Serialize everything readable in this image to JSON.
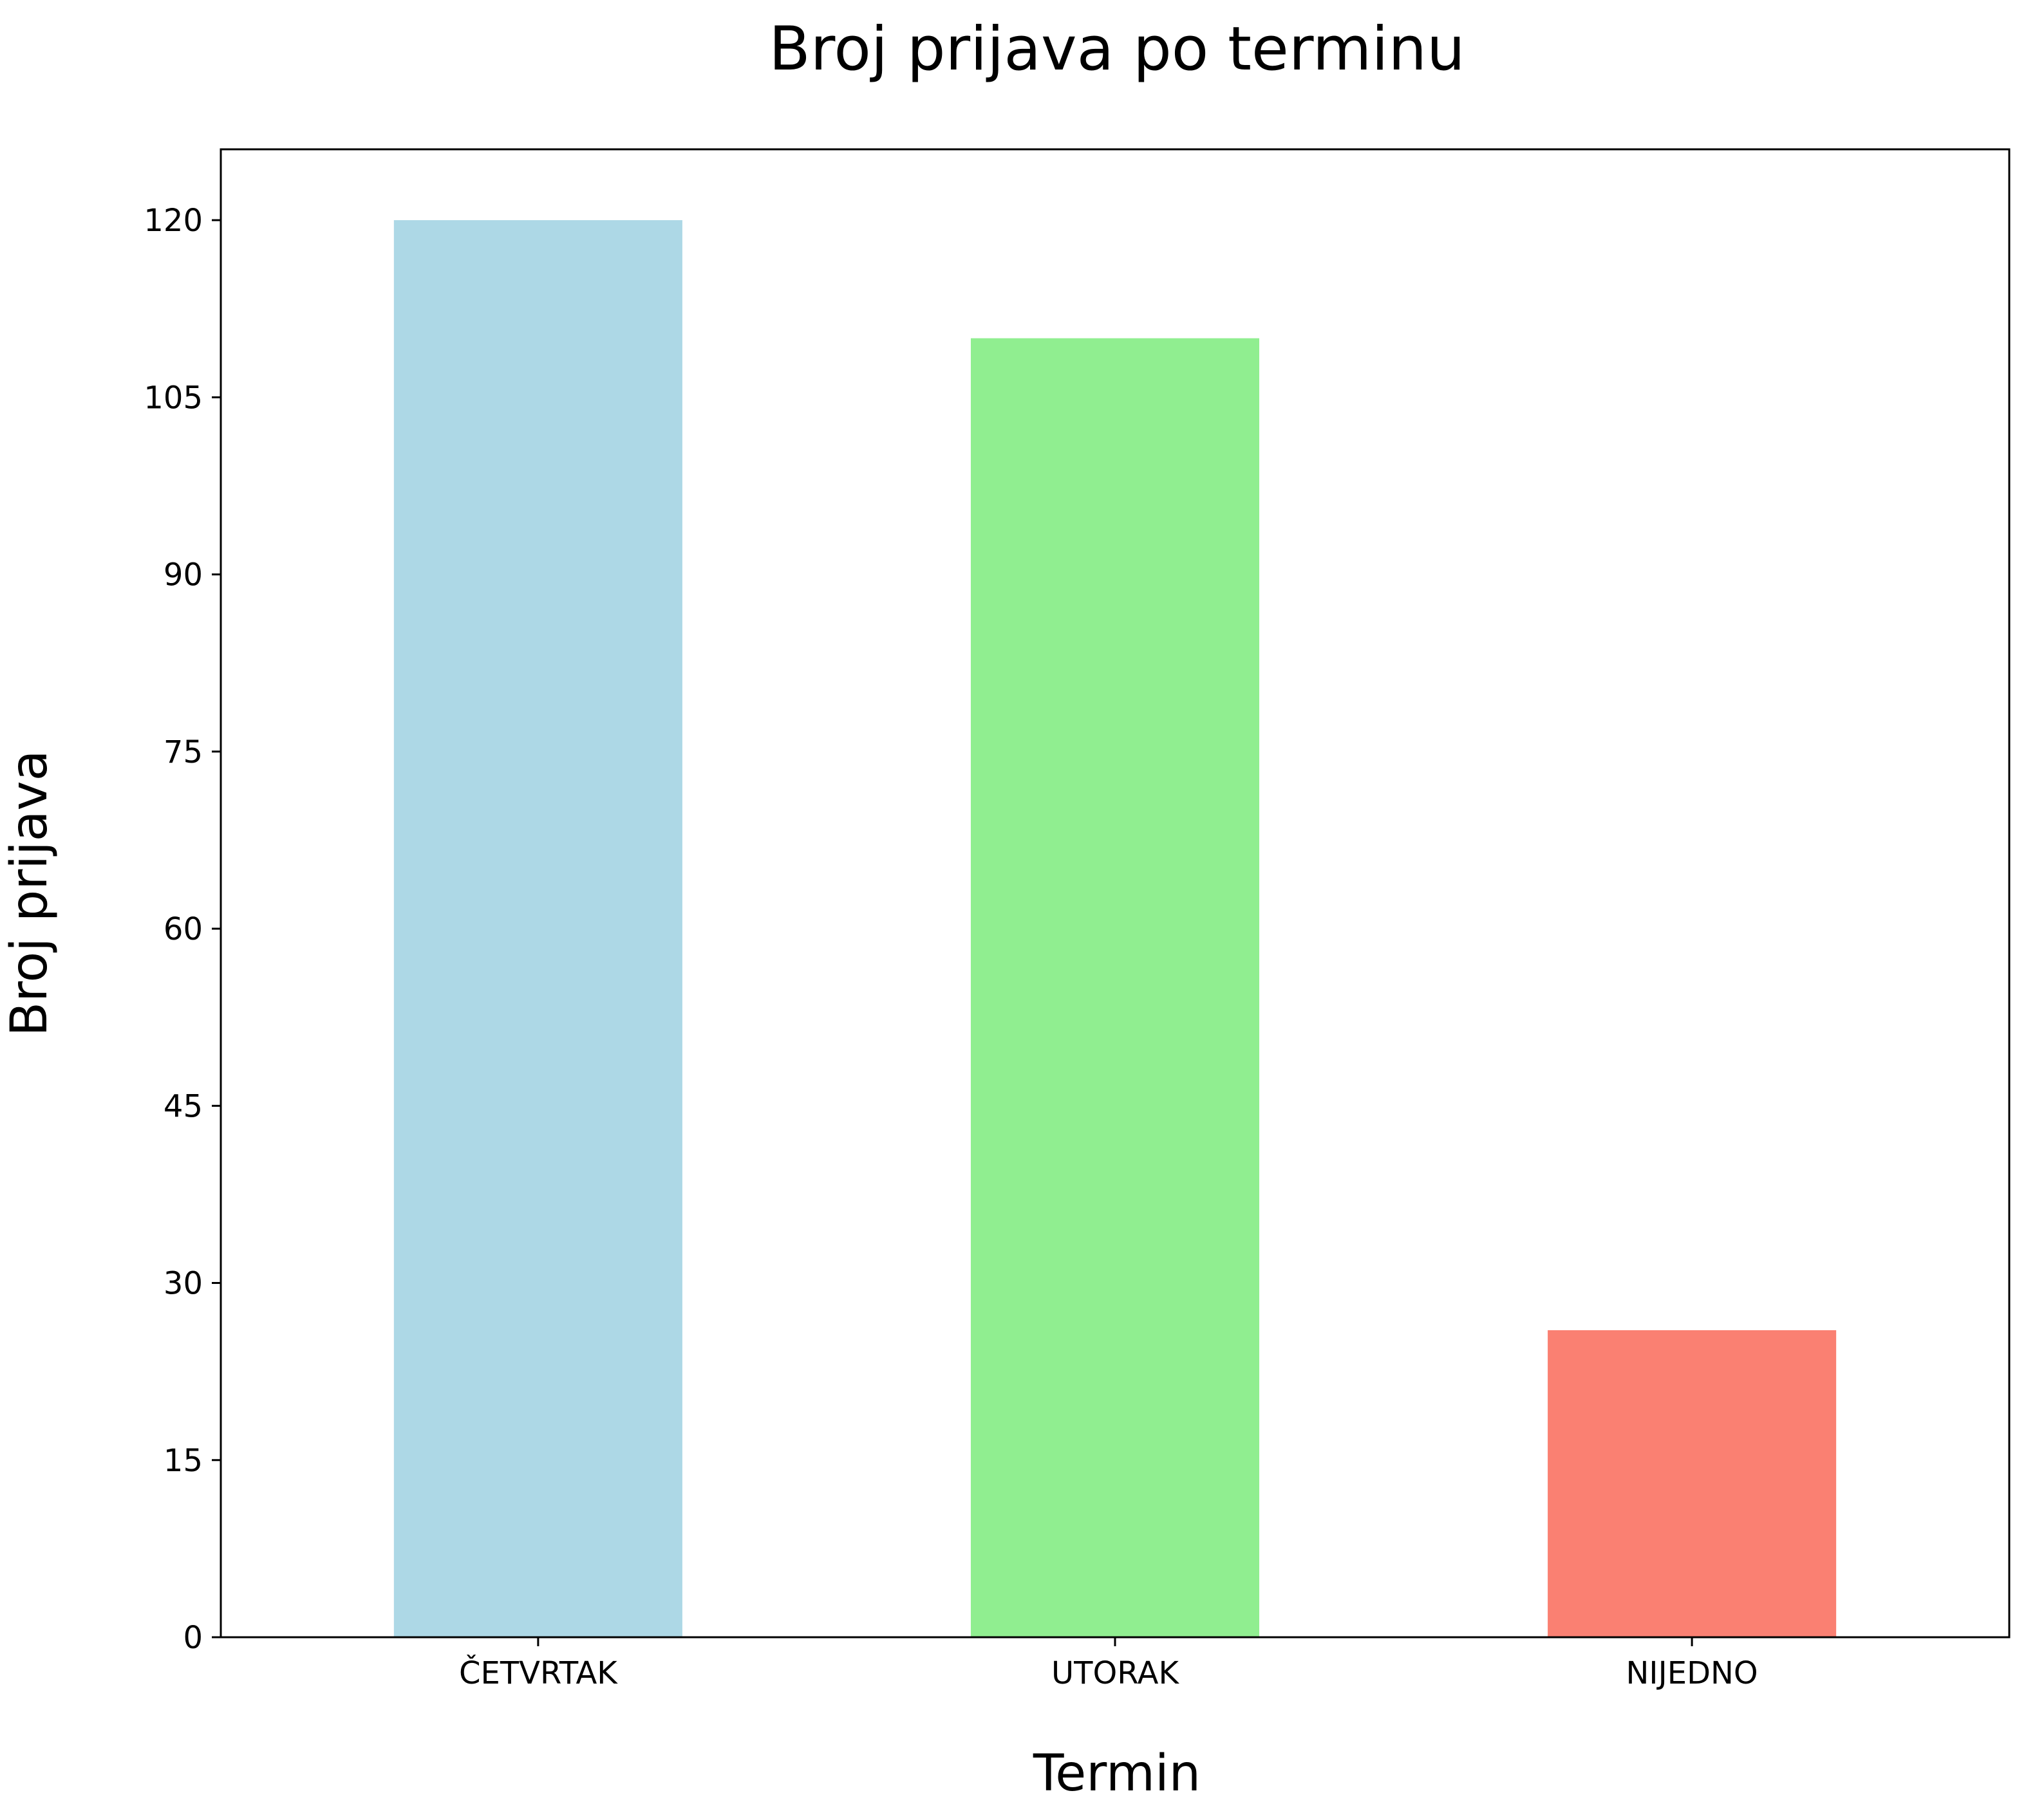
{
  "chart_data": {
    "type": "bar",
    "title": "Broj prijava po terminu",
    "xlabel": "Termin",
    "ylabel": "Broj prijava",
    "categories": [
      "ČETVRTAK",
      "UTORAK",
      "NIJEDNO"
    ],
    "values": [
      120,
      110,
      26
    ],
    "colors": [
      "#add8e6",
      "#90ee90",
      "#fa8072"
    ],
    "ylim": [
      0,
      126
    ],
    "yticks": [
      0,
      15,
      30,
      45,
      60,
      75,
      90,
      105,
      120
    ],
    "grid": false,
    "legend": "none"
  }
}
